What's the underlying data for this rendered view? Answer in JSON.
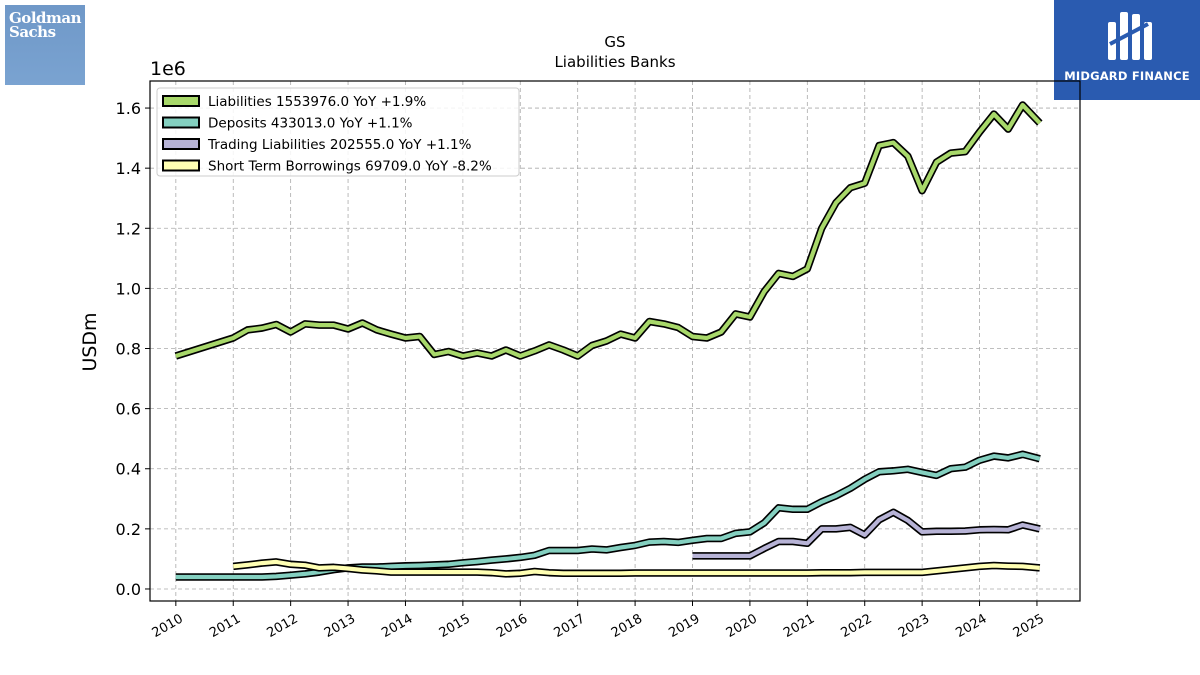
{
  "logos": {
    "left": {
      "line1": "Goldman",
      "line2": "Sachs",
      "color": "#7aa3d1"
    },
    "right": {
      "text": "MIDGARD FINANCE",
      "color": "#2a5bb0"
    }
  },
  "chart_data": {
    "type": "line",
    "title": "GS",
    "subtitle": "Liabilities Banks",
    "xlabel": "",
    "ylabel": "USDm",
    "y_offset_label": "1e6",
    "ylim": [
      -0.04,
      1.69
    ],
    "xlim": [
      2009.55,
      2025.75
    ],
    "y_ticks": [
      0.0,
      0.2,
      0.4,
      0.6,
      0.8,
      1.0,
      1.2,
      1.4,
      1.6
    ],
    "y_tick_labels": [
      "0.0",
      "0.2",
      "0.4",
      "0.6",
      "0.8",
      "1.0",
      "1.2",
      "1.4",
      "1.6"
    ],
    "x_ticks": [
      2010,
      2011,
      2012,
      2013,
      2014,
      2015,
      2016,
      2017,
      2018,
      2019,
      2020,
      2021,
      2022,
      2023,
      2024,
      2025
    ],
    "x_tick_labels": [
      "2010",
      "2011",
      "2012",
      "2013",
      "2014",
      "2015",
      "2016",
      "2017",
      "2018",
      "2019",
      "2020",
      "2021",
      "2022",
      "2023",
      "2024",
      "2025"
    ],
    "grid": true,
    "legend_position": "top-left",
    "series": [
      {
        "name": "Liabilities  1553976.0 YoY +1.9%",
        "color": "#a8d86a",
        "points": [
          [
            2010.0,
            0.775
          ],
          [
            2010.25,
            0.79
          ],
          [
            2010.5,
            0.805
          ],
          [
            2010.75,
            0.82
          ],
          [
            2011.0,
            0.835
          ],
          [
            2011.25,
            0.862
          ],
          [
            2011.5,
            0.868
          ],
          [
            2011.75,
            0.88
          ],
          [
            2012.0,
            0.855
          ],
          [
            2012.25,
            0.882
          ],
          [
            2012.5,
            0.878
          ],
          [
            2012.75,
            0.878
          ],
          [
            2013.0,
            0.865
          ],
          [
            2013.25,
            0.885
          ],
          [
            2013.5,
            0.862
          ],
          [
            2013.75,
            0.848
          ],
          [
            2014.0,
            0.835
          ],
          [
            2014.25,
            0.84
          ],
          [
            2014.5,
            0.78
          ],
          [
            2014.75,
            0.79
          ],
          [
            2015.0,
            0.775
          ],
          [
            2015.25,
            0.785
          ],
          [
            2015.5,
            0.775
          ],
          [
            2015.75,
            0.795
          ],
          [
            2016.0,
            0.775
          ],
          [
            2016.25,
            0.792
          ],
          [
            2016.5,
            0.812
          ],
          [
            2016.75,
            0.795
          ],
          [
            2017.0,
            0.775
          ],
          [
            2017.25,
            0.81
          ],
          [
            2017.5,
            0.825
          ],
          [
            2017.75,
            0.848
          ],
          [
            2018.0,
            0.835
          ],
          [
            2018.25,
            0.89
          ],
          [
            2018.5,
            0.882
          ],
          [
            2018.75,
            0.87
          ],
          [
            2019.0,
            0.84
          ],
          [
            2019.25,
            0.835
          ],
          [
            2019.5,
            0.855
          ],
          [
            2019.75,
            0.915
          ],
          [
            2020.0,
            0.905
          ],
          [
            2020.25,
            0.99
          ],
          [
            2020.5,
            1.05
          ],
          [
            2020.75,
            1.04
          ],
          [
            2021.0,
            1.065
          ],
          [
            2021.25,
            1.2
          ],
          [
            2021.5,
            1.285
          ],
          [
            2021.75,
            1.335
          ],
          [
            2022.0,
            1.35
          ],
          [
            2022.25,
            1.475
          ],
          [
            2022.5,
            1.485
          ],
          [
            2022.75,
            1.44
          ],
          [
            2023.0,
            1.325
          ],
          [
            2023.25,
            1.42
          ],
          [
            2023.5,
            1.45
          ],
          [
            2023.75,
            1.455
          ],
          [
            2024.0,
            1.52
          ],
          [
            2024.25,
            1.58
          ],
          [
            2024.5,
            1.53
          ],
          [
            2024.75,
            1.61
          ],
          [
            2025.05,
            1.55
          ]
        ]
      },
      {
        "name": "Deposits  433013.0 YoY +1.1%",
        "color": "#84d0c0",
        "points": [
          [
            2010.0,
            0.04
          ],
          [
            2010.25,
            0.04
          ],
          [
            2010.5,
            0.04
          ],
          [
            2010.75,
            0.04
          ],
          [
            2011.0,
            0.04
          ],
          [
            2011.25,
            0.04
          ],
          [
            2011.5,
            0.04
          ],
          [
            2011.75,
            0.042
          ],
          [
            2012.0,
            0.046
          ],
          [
            2012.25,
            0.05
          ],
          [
            2012.5,
            0.056
          ],
          [
            2012.75,
            0.064
          ],
          [
            2013.0,
            0.07
          ],
          [
            2013.25,
            0.073
          ],
          [
            2013.5,
            0.073
          ],
          [
            2013.75,
            0.075
          ],
          [
            2014.0,
            0.077
          ],
          [
            2014.25,
            0.078
          ],
          [
            2014.5,
            0.08
          ],
          [
            2014.75,
            0.082
          ],
          [
            2015.0,
            0.087
          ],
          [
            2015.25,
            0.091
          ],
          [
            2015.5,
            0.096
          ],
          [
            2015.75,
            0.1
          ],
          [
            2016.0,
            0.105
          ],
          [
            2016.25,
            0.112
          ],
          [
            2016.5,
            0.128
          ],
          [
            2016.75,
            0.128
          ],
          [
            2017.0,
            0.128
          ],
          [
            2017.25,
            0.133
          ],
          [
            2017.5,
            0.13
          ],
          [
            2017.75,
            0.138
          ],
          [
            2018.0,
            0.145
          ],
          [
            2018.25,
            0.156
          ],
          [
            2018.5,
            0.158
          ],
          [
            2018.75,
            0.155
          ],
          [
            2019.0,
            0.162
          ],
          [
            2019.25,
            0.168
          ],
          [
            2019.5,
            0.168
          ],
          [
            2019.75,
            0.185
          ],
          [
            2020.0,
            0.19
          ],
          [
            2020.25,
            0.22
          ],
          [
            2020.5,
            0.27
          ],
          [
            2020.75,
            0.265
          ],
          [
            2021.0,
            0.265
          ],
          [
            2021.25,
            0.29
          ],
          [
            2021.5,
            0.31
          ],
          [
            2021.75,
            0.335
          ],
          [
            2022.0,
            0.365
          ],
          [
            2022.25,
            0.39
          ],
          [
            2022.5,
            0.393
          ],
          [
            2022.75,
            0.398
          ],
          [
            2023.0,
            0.388
          ],
          [
            2023.25,
            0.378
          ],
          [
            2023.5,
            0.4
          ],
          [
            2023.75,
            0.405
          ],
          [
            2024.0,
            0.428
          ],
          [
            2024.25,
            0.442
          ],
          [
            2024.5,
            0.436
          ],
          [
            2024.75,
            0.448
          ],
          [
            2025.05,
            0.433
          ]
        ]
      },
      {
        "name": "Trading Liabilities  202555.0 YoY +1.1%",
        "color": "#b7b3d6",
        "points": [
          [
            2019.0,
            0.11
          ],
          [
            2019.25,
            0.11
          ],
          [
            2019.5,
            0.11
          ],
          [
            2019.75,
            0.11
          ],
          [
            2020.0,
            0.11
          ],
          [
            2020.25,
            0.135
          ],
          [
            2020.5,
            0.158
          ],
          [
            2020.75,
            0.158
          ],
          [
            2021.0,
            0.152
          ],
          [
            2021.25,
            0.2
          ],
          [
            2021.5,
            0.2
          ],
          [
            2021.75,
            0.205
          ],
          [
            2022.0,
            0.18
          ],
          [
            2022.25,
            0.23
          ],
          [
            2022.5,
            0.255
          ],
          [
            2022.75,
            0.228
          ],
          [
            2023.0,
            0.19
          ],
          [
            2023.25,
            0.192
          ],
          [
            2023.5,
            0.192
          ],
          [
            2023.75,
            0.193
          ],
          [
            2024.0,
            0.197
          ],
          [
            2024.25,
            0.198
          ],
          [
            2024.5,
            0.197
          ],
          [
            2024.75,
            0.213
          ],
          [
            2025.05,
            0.2
          ]
        ]
      },
      {
        "name": "Short Term Borrowings  69709.0 YoY -8.2%",
        "color": "#ffffb3",
        "points": [
          [
            2011.0,
            0.075
          ],
          [
            2011.25,
            0.08
          ],
          [
            2011.5,
            0.086
          ],
          [
            2011.75,
            0.09
          ],
          [
            2012.0,
            0.082
          ],
          [
            2012.25,
            0.079
          ],
          [
            2012.5,
            0.07
          ],
          [
            2012.75,
            0.072
          ],
          [
            2013.0,
            0.068
          ],
          [
            2013.25,
            0.063
          ],
          [
            2013.5,
            0.06
          ],
          [
            2013.75,
            0.056
          ],
          [
            2014.0,
            0.056
          ],
          [
            2014.25,
            0.056
          ],
          [
            2014.5,
            0.056
          ],
          [
            2014.75,
            0.056
          ],
          [
            2015.0,
            0.056
          ],
          [
            2015.25,
            0.056
          ],
          [
            2015.5,
            0.054
          ],
          [
            2015.75,
            0.05
          ],
          [
            2016.0,
            0.052
          ],
          [
            2016.25,
            0.058
          ],
          [
            2016.5,
            0.054
          ],
          [
            2016.75,
            0.052
          ],
          [
            2017.0,
            0.052
          ],
          [
            2017.25,
            0.052
          ],
          [
            2017.5,
            0.052
          ],
          [
            2017.75,
            0.052
          ],
          [
            2018.0,
            0.053
          ],
          [
            2018.25,
            0.053
          ],
          [
            2018.5,
            0.053
          ],
          [
            2018.75,
            0.053
          ],
          [
            2019.0,
            0.053
          ],
          [
            2019.25,
            0.053
          ],
          [
            2019.5,
            0.053
          ],
          [
            2019.75,
            0.053
          ],
          [
            2020.0,
            0.053
          ],
          [
            2020.25,
            0.053
          ],
          [
            2020.5,
            0.053
          ],
          [
            2020.75,
            0.053
          ],
          [
            2021.0,
            0.053
          ],
          [
            2021.25,
            0.054
          ],
          [
            2021.5,
            0.054
          ],
          [
            2021.75,
            0.054
          ],
          [
            2022.0,
            0.055
          ],
          [
            2022.25,
            0.055
          ],
          [
            2022.5,
            0.055
          ],
          [
            2022.75,
            0.055
          ],
          [
            2023.0,
            0.055
          ],
          [
            2023.25,
            0.06
          ],
          [
            2023.5,
            0.065
          ],
          [
            2023.75,
            0.07
          ],
          [
            2024.0,
            0.075
          ],
          [
            2024.25,
            0.078
          ],
          [
            2024.5,
            0.076
          ],
          [
            2024.75,
            0.075
          ],
          [
            2025.05,
            0.07
          ]
        ]
      }
    ]
  }
}
